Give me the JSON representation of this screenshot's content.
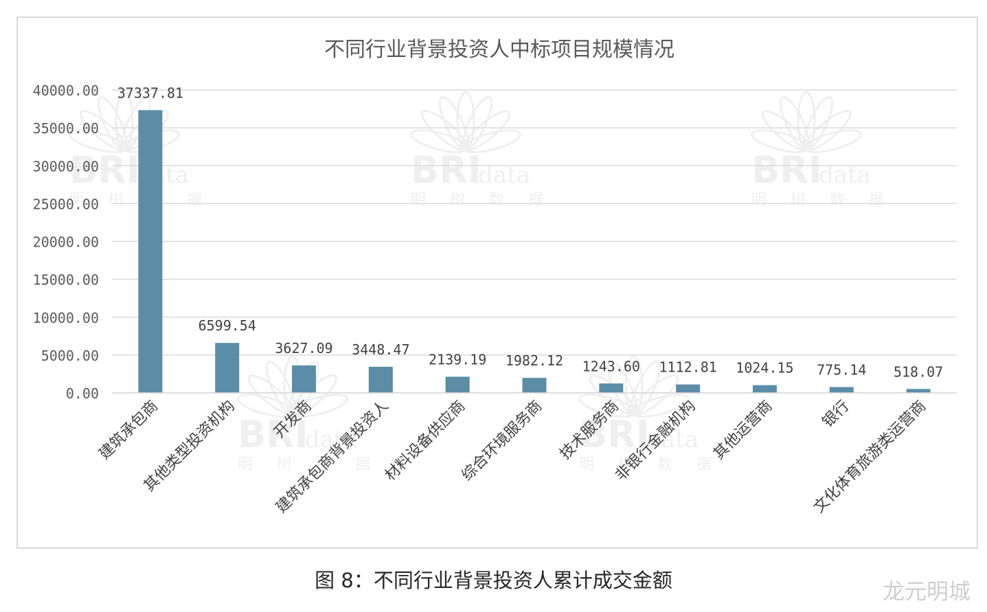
{
  "chart_data": {
    "type": "bar",
    "title": "不同行业背景投资人中标项目规模情况",
    "categories": [
      "建筑承包商",
      "其他类型投资机构",
      "开发商",
      "建筑承包商背景投资人",
      "材料设备供应商",
      "综合环境服务商",
      "技术服务商",
      "非银行金融机构",
      "其他运营商",
      "银行",
      "文化体育旅游类运营商"
    ],
    "values": [
      37337.81,
      6599.54,
      3627.09,
      3448.47,
      2139.19,
      1982.12,
      1243.6,
      1112.81,
      1024.15,
      775.14,
      518.07
    ],
    "value_labels": [
      "37337.81",
      "6599.54",
      "3627.09",
      "3448.47",
      "2139.19",
      "1982.12",
      "1243.60",
      "1112.81",
      "1024.15",
      "775.14",
      "518.07"
    ],
    "y_ticks": [
      "0.00",
      "5000.00",
      "10000.00",
      "15000.00",
      "20000.00",
      "25000.00",
      "30000.00",
      "35000.00",
      "40000.00"
    ],
    "ylim": [
      0,
      40000
    ],
    "grid": true,
    "legend": "none",
    "bar_color": "#5b8ea6"
  },
  "watermark": {
    "brand": "BRI",
    "sub": "data",
    "chars": "明 树 数 据"
  },
  "caption": "图 8：不同行业背景投资人累计成交金额",
  "corner_mark": "龙元明城"
}
